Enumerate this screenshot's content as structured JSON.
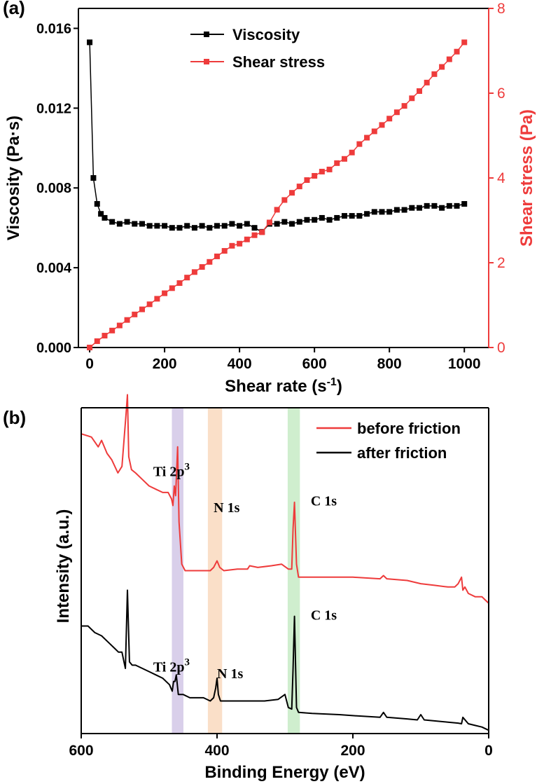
{
  "chart_data": [
    {
      "panel_label": "(a)",
      "type": "scatter",
      "xlabel": "Shear rate (s",
      "xlabel_sup": "-1",
      "xlabel_end": ")",
      "ylabel": "Viscosity (Pa·s)",
      "y2label": "Shear stress (Pa)",
      "xlim": [
        -30,
        1065
      ],
      "ylim": [
        0,
        0.017
      ],
      "y2lim": [
        0,
        8
      ],
      "xticks": [
        "0",
        "200",
        "400",
        "600",
        "800",
        "1000"
      ],
      "yticks": [
        "0.000",
        "0.004",
        "0.008",
        "0.012",
        "0.016"
      ],
      "y2ticks": [
        "0",
        "2",
        "4",
        "6",
        "8"
      ],
      "legend_position": "top-center",
      "series": [
        {
          "name": "Viscosity",
          "axis": "left",
          "color": "#000000",
          "x": [
            0,
            10,
            20,
            30,
            40,
            60,
            80,
            100,
            120,
            140,
            160,
            180,
            200,
            220,
            240,
            260,
            280,
            300,
            320,
            340,
            360,
            380,
            400,
            420,
            440,
            460,
            480,
            500,
            520,
            540,
            560,
            580,
            600,
            620,
            640,
            660,
            680,
            700,
            720,
            740,
            760,
            780,
            800,
            820,
            840,
            860,
            880,
            900,
            920,
            940,
            960,
            980,
            1000
          ],
          "y": [
            0.0153,
            0.0085,
            0.0072,
            0.0067,
            0.0065,
            0.0063,
            0.0062,
            0.0063,
            0.0062,
            0.0062,
            0.0061,
            0.0061,
            0.0061,
            0.006,
            0.006,
            0.0061,
            0.006,
            0.0061,
            0.006,
            0.0061,
            0.0061,
            0.0062,
            0.0061,
            0.0062,
            0.006,
            0.0058,
            0.0062,
            0.0062,
            0.0063,
            0.0062,
            0.0063,
            0.0064,
            0.0064,
            0.0065,
            0.0064,
            0.0065,
            0.0066,
            0.0066,
            0.0066,
            0.0067,
            0.0068,
            0.0068,
            0.0068,
            0.0069,
            0.0069,
            0.007,
            0.007,
            0.0071,
            0.0071,
            0.007,
            0.0071,
            0.0071,
            0.0072
          ]
        },
        {
          "name": "Shear stress",
          "axis": "right",
          "color": "#ee3b3b",
          "x": [
            0,
            20,
            40,
            60,
            80,
            100,
            120,
            140,
            160,
            180,
            200,
            220,
            240,
            260,
            280,
            300,
            320,
            340,
            360,
            380,
            400,
            420,
            440,
            460,
            480,
            500,
            520,
            540,
            560,
            580,
            600,
            620,
            640,
            660,
            680,
            700,
            720,
            740,
            760,
            780,
            800,
            820,
            840,
            860,
            880,
            900,
            920,
            940,
            960,
            980,
            1000
          ],
          "y": [
            0.0,
            0.15,
            0.28,
            0.4,
            0.52,
            0.65,
            0.78,
            0.9,
            1.02,
            1.15,
            1.28,
            1.4,
            1.52,
            1.65,
            1.78,
            1.9,
            2.02,
            2.15,
            2.28,
            2.4,
            2.45,
            2.55,
            2.65,
            2.72,
            2.95,
            3.25,
            3.48,
            3.65,
            3.8,
            3.95,
            4.05,
            4.15,
            4.2,
            4.35,
            4.45,
            4.6,
            4.8,
            4.95,
            5.1,
            5.25,
            5.4,
            5.55,
            5.7,
            5.88,
            6.05,
            6.25,
            6.45,
            6.62,
            6.8,
            6.98,
            7.2
          ]
        }
      ]
    },
    {
      "panel_label": "(b)",
      "type": "line",
      "xlabel": "Binding Energy (eV)",
      "ylabel": "Intensity (a.u.)",
      "xlim": [
        600,
        0
      ],
      "x_reversed": true,
      "xticks": [
        "600",
        "400",
        "200",
        "0"
      ],
      "ylim": [
        0,
        100
      ],
      "yticks_visible": false,
      "legend_position": "top-right",
      "highlight_bands": [
        {
          "center": 458,
          "width": 17,
          "color": "#b9a8d9"
        },
        {
          "center": 403,
          "width": 21,
          "color": "#f6c49a"
        },
        {
          "center": 287,
          "width": 18,
          "color": "#a8e0a5"
        }
      ],
      "annotations": [
        {
          "text": "Ti 2p",
          "sup": "3",
          "x": 494,
          "y": 79
        },
        {
          "text": "N 1s",
          "x": 405,
          "y": 68
        },
        {
          "text": "C 1s",
          "x": 262,
          "y": 70
        },
        {
          "text": "Ti 2p",
          "sup": "3",
          "x": 494,
          "y": 19
        },
        {
          "text": "N 1s",
          "x": 400,
          "y": 17
        },
        {
          "text": "C 1s",
          "x": 262,
          "y": 35
        }
      ],
      "series": [
        {
          "name": "before friction",
          "color": "#ee3b3b",
          "x": [
            600,
            585,
            575,
            570,
            562,
            555,
            546,
            540,
            537,
            534,
            532,
            530,
            526,
            520,
            510,
            500,
            490,
            480,
            472,
            467,
            465,
            463,
            461,
            460,
            458,
            456,
            452,
            447,
            430,
            420,
            410,
            405,
            400,
            396,
            390,
            370,
            355,
            352,
            340,
            320,
            305,
            295,
            290,
            288,
            286,
            283,
            280,
            250,
            200,
            160,
            155,
            150,
            120,
            100,
            80,
            60,
            50,
            45,
            40,
            38,
            35,
            30,
            20,
            10,
            5,
            0
          ],
          "y": [
            92,
            91,
            88,
            90,
            86,
            84,
            80,
            82,
            90,
            98,
            104,
            85,
            81,
            80,
            78,
            76,
            75,
            74,
            74,
            72,
            70,
            76,
            73,
            78,
            88,
            65,
            52,
            50,
            50,
            50,
            50,
            51,
            53,
            51,
            50,
            50.5,
            50.5,
            51.5,
            51,
            51.5,
            52,
            50.5,
            50.5,
            63,
            71,
            52,
            48,
            48,
            48,
            47.5,
            48.5,
            47.5,
            47,
            46,
            45.5,
            45,
            45,
            46,
            48,
            44,
            45,
            43,
            42,
            42,
            41,
            40
          ]
        },
        {
          "name": "after friction",
          "color": "#000000",
          "x": [
            600,
            590,
            580,
            570,
            560,
            550,
            545,
            540,
            537,
            535,
            532,
            529,
            525,
            520,
            510,
            500,
            490,
            480,
            470,
            466,
            464,
            462,
            460,
            457,
            455,
            450,
            440,
            420,
            410,
            405,
            402,
            400,
            398,
            395,
            390,
            360,
            330,
            310,
            300,
            295,
            290,
            288,
            286,
            283,
            280,
            260,
            220,
            200,
            160,
            155,
            150,
            120,
            105,
            100,
            95,
            60,
            45,
            40,
            38,
            30,
            20,
            10,
            0
          ],
          "y": [
            33,
            33,
            31,
            30,
            28,
            26,
            25,
            25,
            22,
            20,
            44,
            22,
            21,
            21,
            20,
            19,
            18,
            17,
            15,
            13,
            16,
            16,
            18,
            12,
            12,
            12,
            11,
            11,
            10,
            11,
            14,
            17,
            12,
            10,
            10,
            10,
            10,
            10.5,
            12,
            8,
            7.5,
            20,
            36,
            8,
            6.5,
            6.2,
            5.8,
            5.5,
            5,
            6.5,
            5,
            4.5,
            4.2,
            5.8,
            4.2,
            3.5,
            3.2,
            3,
            5,
            3,
            2.5,
            2,
            1
          ]
        }
      ]
    }
  ]
}
